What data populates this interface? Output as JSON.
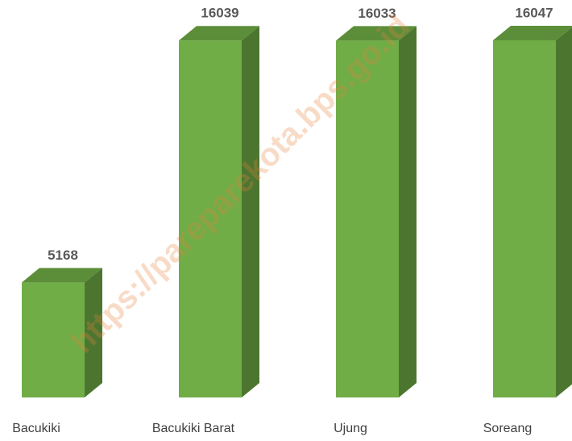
{
  "chart_data": {
    "type": "bar3d",
    "categories": [
      "Bacukiki",
      "Bacukiki Barat",
      "Ujung",
      "Soreang"
    ],
    "values": [
      5168,
      16039,
      16033,
      16047
    ],
    "color": "#70ad47",
    "watermark": "https://pareparekota.bps.go.id"
  }
}
